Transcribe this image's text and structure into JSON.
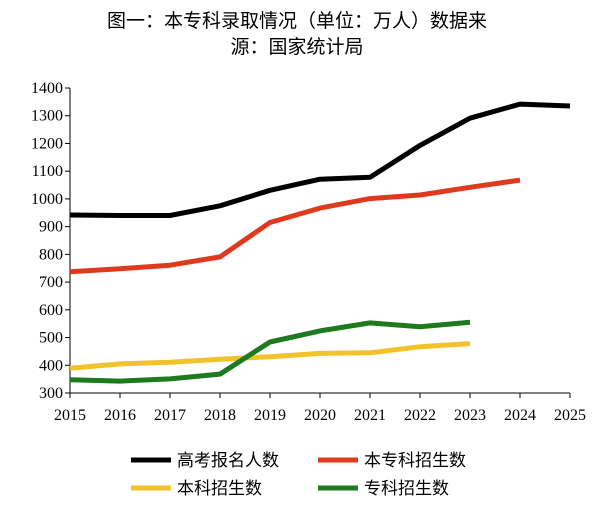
{
  "chart_data": {
    "type": "line",
    "title_line1": "图一：本专科录取情况（单位：万人）数据来",
    "title_line2": "源：国家统计局",
    "xlabel": "",
    "ylabel": "",
    "x": [
      2015,
      2016,
      2017,
      2018,
      2019,
      2020,
      2021,
      2022,
      2023,
      2024,
      2025
    ],
    "xlim": [
      2015,
      2025
    ],
    "ylim": [
      300,
      1400
    ],
    "yticks": [
      300,
      400,
      500,
      600,
      700,
      800,
      900,
      1000,
      1100,
      1200,
      1300,
      1400
    ],
    "grid": false,
    "legend_position": "bottom",
    "series": [
      {
        "name": "高考报名人数",
        "color": "#000000",
        "x": [
          2015,
          2016,
          2017,
          2018,
          2019,
          2020,
          2021,
          2022,
          2023,
          2024,
          2025
        ],
        "values": [
          942,
          940,
          940,
          975,
          1031,
          1071,
          1078,
          1193,
          1291,
          1342,
          1335
        ]
      },
      {
        "name": "本专科招生数",
        "color": "#e03a1e",
        "x": [
          2015,
          2016,
          2017,
          2018,
          2019,
          2020,
          2021,
          2022,
          2023,
          2024
        ],
        "values": [
          737,
          748,
          761,
          791,
          915,
          967,
          1001,
          1014,
          1042,
          1068
        ]
      },
      {
        "name": "本科招生数",
        "color": "#f2c22a",
        "x": [
          2015,
          2016,
          2017,
          2018,
          2019,
          2020,
          2021,
          2022,
          2023
        ],
        "values": [
          389,
          405,
          411,
          422,
          431,
          443,
          445,
          467,
          478
        ]
      },
      {
        "name": "专科招生数",
        "color": "#1e7a1e",
        "x": [
          2015,
          2016,
          2017,
          2018,
          2019,
          2020,
          2021,
          2022,
          2023
        ],
        "values": [
          348,
          343,
          351,
          368,
          484,
          524,
          553,
          539,
          555
        ]
      }
    ]
  }
}
